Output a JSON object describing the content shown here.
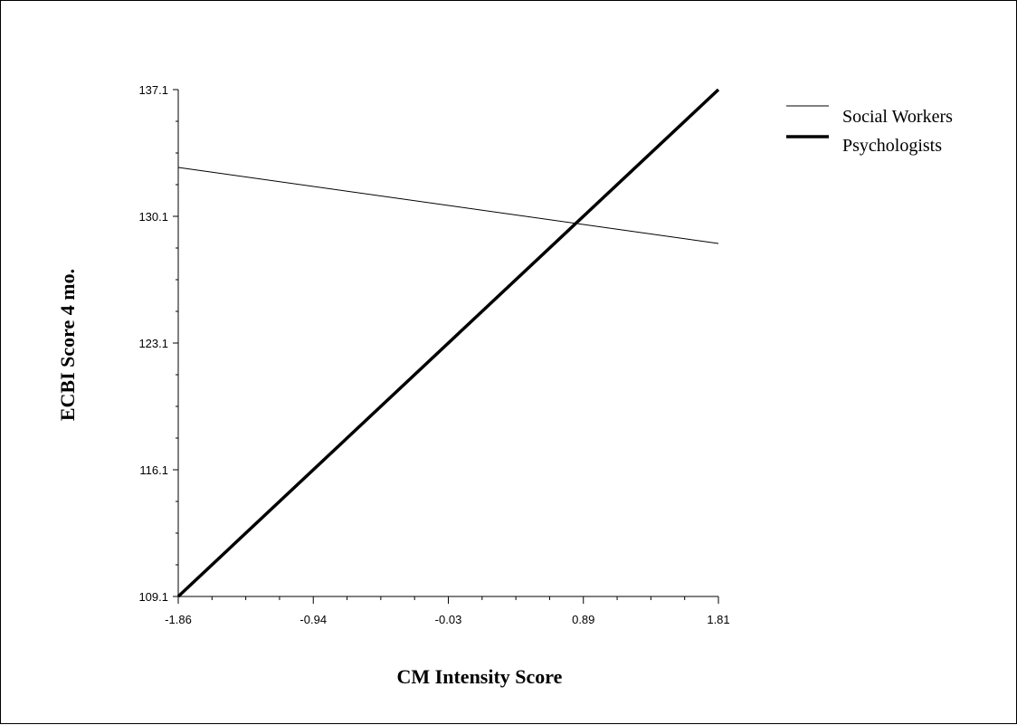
{
  "chart_data": {
    "type": "line",
    "title": "",
    "xlabel": "CM Intensity Score",
    "ylabel": "ECBI Score 4 mo.",
    "x": [
      -1.86,
      1.81
    ],
    "xlim": [
      -1.86,
      1.81
    ],
    "ylim": [
      109.1,
      137.1
    ],
    "x_ticks": [
      "-1.86",
      "-0.94",
      "-0.03",
      "0.89",
      "1.81"
    ],
    "y_ticks": [
      "109.1",
      "116.1",
      "123.1",
      "130.1",
      "137.1"
    ],
    "grid": false,
    "legend_position": "top-right",
    "series": [
      {
        "name": "Social Workers",
        "values": [
          132.8,
          128.6
        ],
        "color": "#000000",
        "style": "thin"
      },
      {
        "name": "Psychologists",
        "values": [
          109.1,
          137.1
        ],
        "color": "#000000",
        "style": "thick"
      }
    ]
  }
}
